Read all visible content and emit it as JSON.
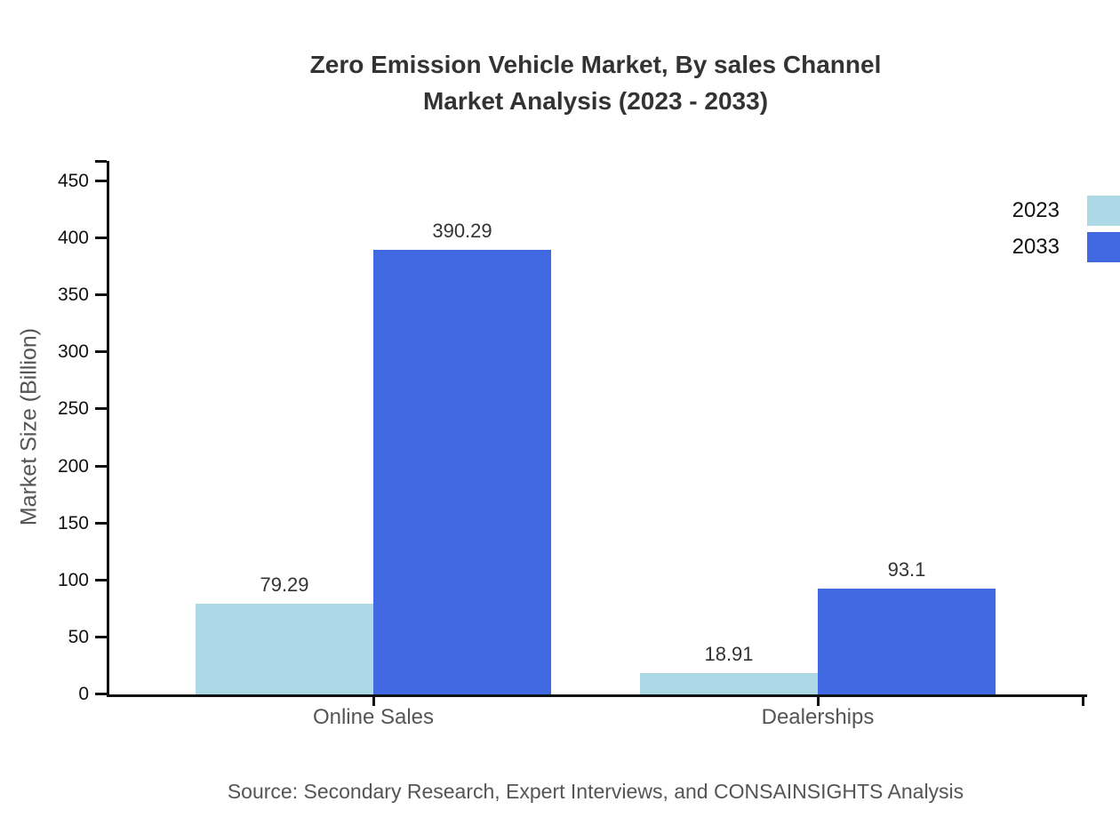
{
  "title": {
    "line1": "Zero Emission Vehicle Market, By sales Channel",
    "line2": "Market Analysis (2023 - 2033)"
  },
  "source": "Source: Secondary Research, Expert Interviews, and CONSAINSIGHTS Analysis",
  "chart_data": {
    "type": "bar",
    "categories": [
      "Online Sales",
      "Dealerships"
    ],
    "series": [
      {
        "name": "2023",
        "values": [
          79.29,
          18.91
        ],
        "color": "#ADD8E6"
      },
      {
        "name": "2033",
        "values": [
          390.29,
          93.1
        ],
        "color": "#4169E1"
      }
    ],
    "value_labels": [
      [
        "79.29",
        "18.91"
      ],
      [
        "390.29",
        "93.1"
      ]
    ],
    "title": "Zero Emission Vehicle Market, By sales Channel Market Analysis (2023 - 2033)",
    "xlabel": "",
    "ylabel": "Market Size (Billion)",
    "ylim": [
      0,
      468
    ],
    "yticks": [
      0,
      50,
      100,
      150,
      200,
      250,
      300,
      350,
      400,
      450
    ],
    "grid": false,
    "legend_position": "top-right",
    "axis_color": "#111111",
    "label_color": "#333333",
    "category_color": "#555555"
  }
}
